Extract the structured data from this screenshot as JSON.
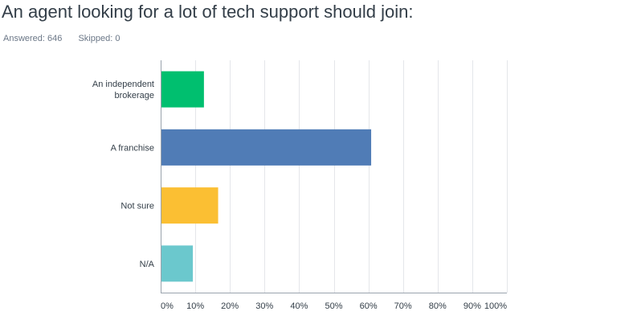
{
  "question": {
    "title": "An agent looking for a lot of tech support should join:",
    "answered": "Answered: 646",
    "skipped": "Skipped: 0"
  },
  "colors": {
    "grid": "#e4e6ea",
    "axis": "#9aa3ad",
    "text": "#333e48",
    "meta": "#6b7787"
  },
  "chart_data": {
    "type": "bar",
    "orientation": "horizontal",
    "categories": [
      [
        "An independent",
        "brokerage"
      ],
      [
        "A franchise"
      ],
      [
        "Not sure"
      ],
      [
        "N/A"
      ]
    ],
    "values": [
      12.5,
      60.8,
      16.6,
      9.3
    ],
    "colors": [
      "#00bf6f",
      "#507cb6",
      "#fbbf33",
      "#6bc8cd"
    ],
    "xlim": [
      0,
      100
    ],
    "xticks": [
      0,
      10,
      20,
      30,
      40,
      50,
      60,
      70,
      80,
      90,
      100
    ],
    "xtick_labels": [
      "0%",
      "10%",
      "20%",
      "30%",
      "40%",
      "50%",
      "60%",
      "70%",
      "80%",
      "90%",
      "100%"
    ],
    "grid": true,
    "legend": "none"
  }
}
